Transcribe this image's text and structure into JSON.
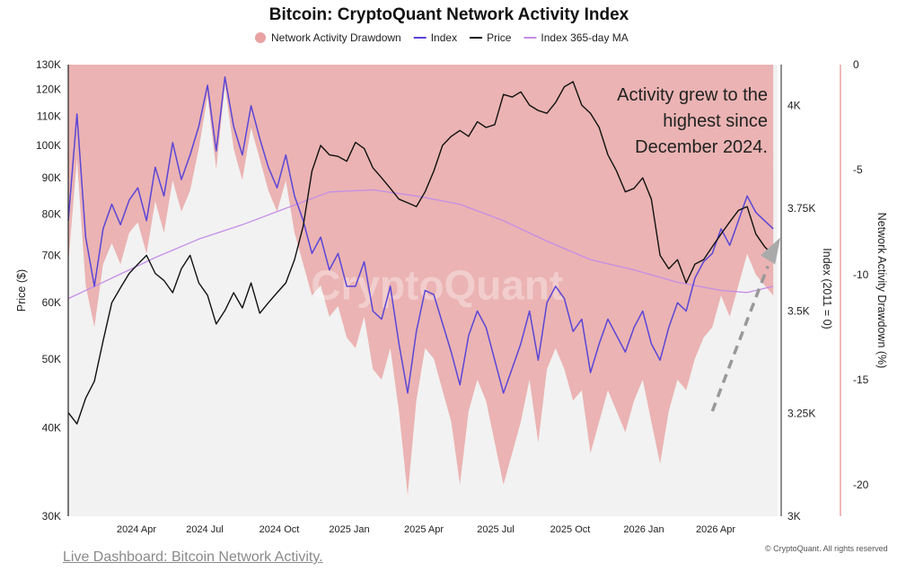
{
  "chart_data": {
    "type": "line",
    "title": "Bitcoin: CryptoQuant Network Activity Index",
    "legend": {
      "placement": "top-center",
      "entries": [
        {
          "label": "Network Activity Drawdown",
          "color": "#e9a2a2",
          "marker": "circle"
        },
        {
          "label": "Index",
          "color": "#5a46d6",
          "marker": "line"
        },
        {
          "label": "Price",
          "color": "#111111",
          "marker": "line"
        },
        {
          "label": "Index 365-day MA",
          "color": "#c48ee6",
          "marker": "line"
        }
      ]
    },
    "x_axis": {
      "ticks": [
        "2024 Apr",
        "2024 Jul",
        "2024 Oct",
        "2025 Jan",
        "2025 Apr",
        "2025 Jul",
        "2025 Oct",
        "2026 Jan",
        "2026 Apr"
      ],
      "range": [
        "2024-01",
        "2026-06"
      ]
    },
    "y_left": {
      "label": "Price ($)",
      "scale": "log",
      "range": [
        30000,
        130000
      ],
      "ticks": [
        {
          "v": 30000,
          "t": "30K"
        },
        {
          "v": 40000,
          "t": "40K"
        },
        {
          "v": 50000,
          "t": "50K"
        },
        {
          "v": 60000,
          "t": "60K"
        },
        {
          "v": 70000,
          "t": "70K"
        },
        {
          "v": 80000,
          "t": "80K"
        },
        {
          "v": 90000,
          "t": "90K"
        },
        {
          "v": 100000,
          "t": "100K"
        },
        {
          "v": 110000,
          "t": "110K"
        },
        {
          "v": 120000,
          "t": "120K"
        },
        {
          "v": 130000,
          "t": "130K"
        }
      ]
    },
    "y_mid": {
      "label": "Index (2011 = 0)",
      "scale": "linear",
      "range": [
        3000,
        4100
      ],
      "ticks": [
        {
          "v": 3000,
          "t": "3K"
        },
        {
          "v": 3250,
          "t": "3.25K"
        },
        {
          "v": 3500,
          "t": "3.5K"
        },
        {
          "v": 3750,
          "t": "3.75K"
        },
        {
          "v": 4000,
          "t": "4K"
        }
      ]
    },
    "y_right": {
      "label": "Network Activity Drawdown (%)",
      "scale": "linear",
      "range": [
        -21.5,
        0
      ],
      "ticks": [
        {
          "v": 0,
          "t": "0"
        },
        {
          "v": -5,
          "t": "-5"
        },
        {
          "v": -10,
          "t": "-10"
        },
        {
          "v": -15,
          "t": "-15"
        },
        {
          "v": -20,
          "t": "-20"
        }
      ]
    },
    "series": [
      {
        "name": "Price",
        "axis": "left",
        "color": "#111111",
        "points": [
          [
            0.0,
            42000
          ],
          [
            0.01,
            40500
          ],
          [
            0.02,
            44000
          ],
          [
            0.03,
            46500
          ],
          [
            0.04,
            53000
          ],
          [
            0.05,
            60000
          ],
          [
            0.06,
            63000
          ],
          [
            0.07,
            66000
          ],
          [
            0.08,
            68000
          ],
          [
            0.09,
            70000
          ],
          [
            0.1,
            66000
          ],
          [
            0.11,
            64500
          ],
          [
            0.12,
            62000
          ],
          [
            0.13,
            67000
          ],
          [
            0.14,
            70000
          ],
          [
            0.15,
            64000
          ],
          [
            0.16,
            61500
          ],
          [
            0.17,
            56000
          ],
          [
            0.18,
            58500
          ],
          [
            0.19,
            62000
          ],
          [
            0.2,
            59000
          ],
          [
            0.21,
            64000
          ],
          [
            0.22,
            58000
          ],
          [
            0.23,
            60000
          ],
          [
            0.24,
            62000
          ],
          [
            0.25,
            64000
          ],
          [
            0.26,
            69000
          ],
          [
            0.27,
            77000
          ],
          [
            0.28,
            92000
          ],
          [
            0.29,
            100000
          ],
          [
            0.3,
            97000
          ],
          [
            0.31,
            96500
          ],
          [
            0.32,
            95000
          ],
          [
            0.33,
            101000
          ],
          [
            0.34,
            99000
          ],
          [
            0.35,
            93000
          ],
          [
            0.36,
            90000
          ],
          [
            0.37,
            87000
          ],
          [
            0.38,
            84000
          ],
          [
            0.39,
            83000
          ],
          [
            0.4,
            82000
          ],
          [
            0.41,
            86000
          ],
          [
            0.42,
            92000
          ],
          [
            0.43,
            100000
          ],
          [
            0.44,
            103000
          ],
          [
            0.45,
            105000
          ],
          [
            0.46,
            103000
          ],
          [
            0.47,
            108000
          ],
          [
            0.48,
            106000
          ],
          [
            0.49,
            107000
          ],
          [
            0.5,
            118000
          ],
          [
            0.51,
            117000
          ],
          [
            0.52,
            119000
          ],
          [
            0.53,
            114000
          ],
          [
            0.54,
            112000
          ],
          [
            0.55,
            111000
          ],
          [
            0.56,
            115000
          ],
          [
            0.57,
            121000
          ],
          [
            0.58,
            123000
          ],
          [
            0.59,
            114000
          ],
          [
            0.6,
            111000
          ],
          [
            0.61,
            106000
          ],
          [
            0.62,
            97000
          ],
          [
            0.63,
            92000
          ],
          [
            0.64,
            86000
          ],
          [
            0.65,
            87000
          ],
          [
            0.66,
            90000
          ],
          [
            0.67,
            84000
          ],
          [
            0.68,
            70000
          ],
          [
            0.69,
            67000
          ],
          [
            0.7,
            69000
          ],
          [
            0.71,
            64000
          ],
          [
            0.72,
            68000
          ],
          [
            0.73,
            69000
          ],
          [
            0.74,
            72000
          ],
          [
            0.75,
            75000
          ],
          [
            0.76,
            78000
          ],
          [
            0.77,
            81000
          ],
          [
            0.78,
            82000
          ],
          [
            0.79,
            75000
          ],
          [
            0.8,
            72000
          ],
          [
            0.81,
            70000
          ]
        ]
      },
      {
        "name": "Index",
        "axis": "mid",
        "color": "#5a46d6",
        "points": [
          [
            0.0,
            3720
          ],
          [
            0.01,
            3980
          ],
          [
            0.02,
            3680
          ],
          [
            0.03,
            3560
          ],
          [
            0.04,
            3700
          ],
          [
            0.05,
            3760
          ],
          [
            0.06,
            3710
          ],
          [
            0.07,
            3770
          ],
          [
            0.08,
            3800
          ],
          [
            0.09,
            3720
          ],
          [
            0.1,
            3850
          ],
          [
            0.11,
            3780
          ],
          [
            0.12,
            3910
          ],
          [
            0.13,
            3820
          ],
          [
            0.14,
            3880
          ],
          [
            0.15,
            3950
          ],
          [
            0.16,
            4050
          ],
          [
            0.17,
            3890
          ],
          [
            0.18,
            4070
          ],
          [
            0.19,
            3950
          ],
          [
            0.2,
            3880
          ],
          [
            0.21,
            4000
          ],
          [
            0.22,
            3920
          ],
          [
            0.23,
            3850
          ],
          [
            0.24,
            3800
          ],
          [
            0.25,
            3880
          ],
          [
            0.26,
            3780
          ],
          [
            0.27,
            3720
          ],
          [
            0.28,
            3640
          ],
          [
            0.29,
            3680
          ],
          [
            0.3,
            3600
          ],
          [
            0.31,
            3640
          ],
          [
            0.32,
            3560
          ],
          [
            0.33,
            3560
          ],
          [
            0.34,
            3620
          ],
          [
            0.35,
            3500
          ],
          [
            0.36,
            3480
          ],
          [
            0.37,
            3560
          ],
          [
            0.38,
            3420
          ],
          [
            0.39,
            3300
          ],
          [
            0.4,
            3450
          ],
          [
            0.41,
            3550
          ],
          [
            0.42,
            3540
          ],
          [
            0.43,
            3470
          ],
          [
            0.44,
            3400
          ],
          [
            0.45,
            3320
          ],
          [
            0.46,
            3440
          ],
          [
            0.47,
            3500
          ],
          [
            0.48,
            3460
          ],
          [
            0.49,
            3380
          ],
          [
            0.5,
            3300
          ],
          [
            0.51,
            3360
          ],
          [
            0.52,
            3420
          ],
          [
            0.53,
            3500
          ],
          [
            0.54,
            3380
          ],
          [
            0.55,
            3520
          ],
          [
            0.56,
            3560
          ],
          [
            0.57,
            3530
          ],
          [
            0.58,
            3450
          ],
          [
            0.59,
            3480
          ],
          [
            0.6,
            3350
          ],
          [
            0.61,
            3420
          ],
          [
            0.62,
            3480
          ],
          [
            0.63,
            3440
          ],
          [
            0.64,
            3400
          ],
          [
            0.65,
            3460
          ],
          [
            0.66,
            3500
          ],
          [
            0.67,
            3420
          ],
          [
            0.68,
            3380
          ],
          [
            0.69,
            3460
          ],
          [
            0.7,
            3520
          ],
          [
            0.71,
            3500
          ],
          [
            0.72,
            3580
          ],
          [
            0.73,
            3620
          ],
          [
            0.74,
            3640
          ],
          [
            0.75,
            3700
          ],
          [
            0.76,
            3660
          ],
          [
            0.77,
            3720
          ],
          [
            0.78,
            3780
          ],
          [
            0.79,
            3740
          ],
          [
            0.8,
            3720
          ],
          [
            0.81,
            3700
          ]
        ]
      },
      {
        "name": "Index 365-day MA",
        "axis": "mid",
        "color": "#c48ee6",
        "points": [
          [
            0.0,
            3530
          ],
          [
            0.05,
            3580
          ],
          [
            0.1,
            3630
          ],
          [
            0.15,
            3675
          ],
          [
            0.2,
            3710
          ],
          [
            0.25,
            3750
          ],
          [
            0.3,
            3790
          ],
          [
            0.35,
            3795
          ],
          [
            0.4,
            3780
          ],
          [
            0.45,
            3760
          ],
          [
            0.5,
            3720
          ],
          [
            0.55,
            3670
          ],
          [
            0.6,
            3625
          ],
          [
            0.65,
            3600
          ],
          [
            0.7,
            3570
          ],
          [
            0.75,
            3550
          ],
          [
            0.78,
            3545
          ],
          [
            0.81,
            3560
          ]
        ]
      },
      {
        "name": "Network Activity Drawdown",
        "axis": "right",
        "color": "#e9a2a2",
        "points": [
          [
            0.0,
            -9.5
          ],
          [
            0.01,
            -4.5
          ],
          [
            0.02,
            -10.5
          ],
          [
            0.03,
            -12.5
          ],
          [
            0.04,
            -9.5
          ],
          [
            0.05,
            -8.5
          ],
          [
            0.06,
            -9.5
          ],
          [
            0.07,
            -8.0
          ],
          [
            0.08,
            -7.5
          ],
          [
            0.09,
            -9.0
          ],
          [
            0.1,
            -6.5
          ],
          [
            0.11,
            -8.0
          ],
          [
            0.12,
            -5.5
          ],
          [
            0.13,
            -7.0
          ],
          [
            0.14,
            -6.0
          ],
          [
            0.15,
            -4.0
          ],
          [
            0.16,
            -1.5
          ],
          [
            0.17,
            -5.0
          ],
          [
            0.18,
            -1.0
          ],
          [
            0.19,
            -4.0
          ],
          [
            0.2,
            -5.5
          ],
          [
            0.21,
            -3.0
          ],
          [
            0.22,
            -4.5
          ],
          [
            0.23,
            -6.0
          ],
          [
            0.24,
            -7.0
          ],
          [
            0.25,
            -5.5
          ],
          [
            0.26,
            -8.0
          ],
          [
            0.27,
            -9.5
          ],
          [
            0.28,
            -11.0
          ],
          [
            0.29,
            -10.5
          ],
          [
            0.3,
            -12.0
          ],
          [
            0.31,
            -11.5
          ],
          [
            0.32,
            -13.0
          ],
          [
            0.33,
            -13.5
          ],
          [
            0.34,
            -12.0
          ],
          [
            0.35,
            -14.5
          ],
          [
            0.36,
            -15.0
          ],
          [
            0.37,
            -13.5
          ],
          [
            0.38,
            -16.5
          ],
          [
            0.39,
            -20.5
          ],
          [
            0.4,
            -16.0
          ],
          [
            0.41,
            -13.5
          ],
          [
            0.42,
            -14.0
          ],
          [
            0.43,
            -15.5
          ],
          [
            0.44,
            -17.0
          ],
          [
            0.45,
            -20.0
          ],
          [
            0.46,
            -16.5
          ],
          [
            0.47,
            -15.0
          ],
          [
            0.48,
            -16.0
          ],
          [
            0.49,
            -18.0
          ],
          [
            0.5,
            -20.0
          ],
          [
            0.51,
            -18.5
          ],
          [
            0.52,
            -17.0
          ],
          [
            0.53,
            -15.0
          ],
          [
            0.54,
            -18.0
          ],
          [
            0.55,
            -14.5
          ],
          [
            0.56,
            -13.5
          ],
          [
            0.57,
            -14.5
          ],
          [
            0.58,
            -16.0
          ],
          [
            0.59,
            -15.5
          ],
          [
            0.6,
            -18.5
          ],
          [
            0.61,
            -17.0
          ],
          [
            0.62,
            -15.5
          ],
          [
            0.63,
            -16.5
          ],
          [
            0.64,
            -17.5
          ],
          [
            0.65,
            -16.0
          ],
          [
            0.66,
            -15.0
          ],
          [
            0.67,
            -17.0
          ],
          [
            0.68,
            -19.0
          ],
          [
            0.69,
            -16.5
          ],
          [
            0.7,
            -15.0
          ],
          [
            0.71,
            -15.5
          ],
          [
            0.72,
            -14.0
          ],
          [
            0.73,
            -13.0
          ],
          [
            0.74,
            -12.5
          ],
          [
            0.75,
            -11.0
          ],
          [
            0.76,
            -12.0
          ],
          [
            0.77,
            -10.5
          ],
          [
            0.78,
            -9.0
          ],
          [
            0.79,
            -10.0
          ],
          [
            0.8,
            -10.5
          ],
          [
            0.81,
            -11.0
          ]
        ]
      }
    ],
    "annotations": [
      {
        "text": [
          "Activity grew to the",
          "highest since",
          "December 2024."
        ]
      }
    ],
    "trend_arrow": {
      "from": [
        0.74,
        -16.5
      ],
      "to": [
        0.81,
        -9.0
      ],
      "style": "dashed",
      "color": "#999999"
    },
    "watermark": "CryptoQuant"
  },
  "footer": {
    "link_text": "Live Dashboard: Bitcoin Network Activity.",
    "copyright": "© CryptoQuant. All rights reserved"
  }
}
